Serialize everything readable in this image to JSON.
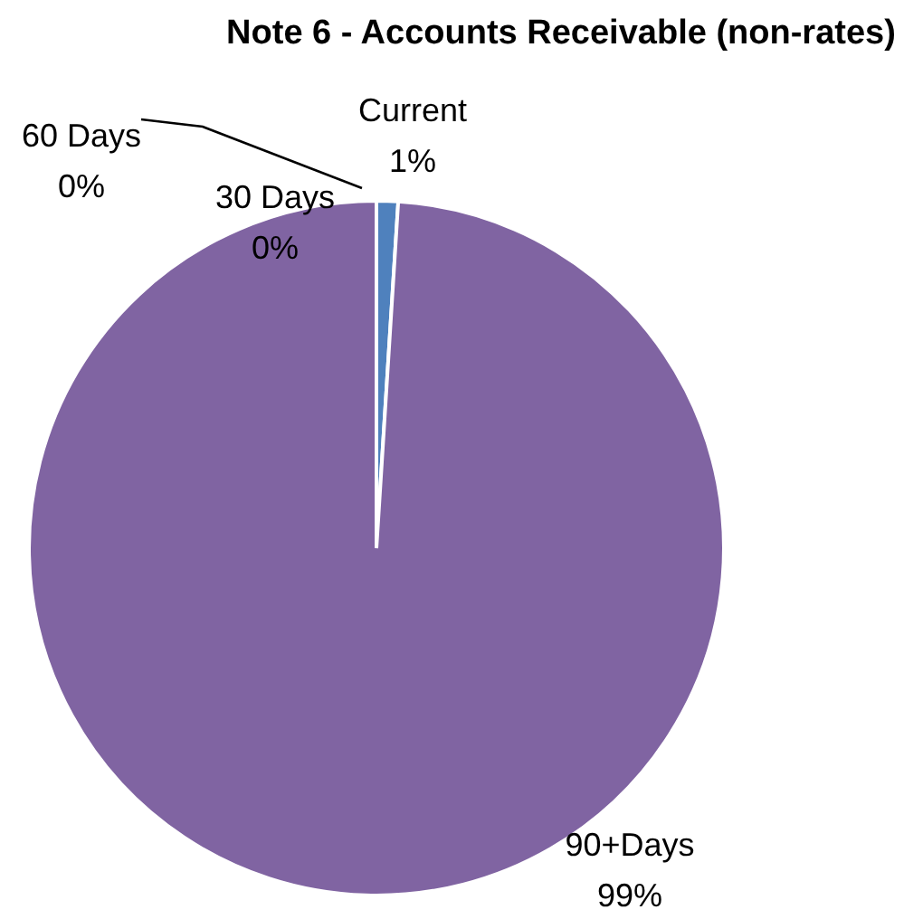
{
  "chart_data": {
    "type": "pie",
    "title": "Note 6 - Accounts Receivable (non-rates)",
    "categories": [
      "Current",
      "30 Days",
      "60 Days",
      "90+Days"
    ],
    "values": [
      1,
      0,
      0,
      99
    ],
    "value_labels": [
      "1%",
      "0%",
      "0%",
      "99%"
    ],
    "colors": [
      "#4f81bd",
      "#c0504d",
      "#9bbb59",
      "#8064a2"
    ]
  }
}
